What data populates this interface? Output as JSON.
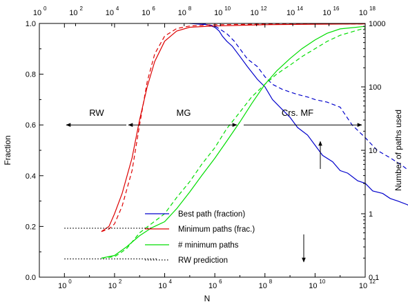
{
  "chart_data": {
    "type": "line",
    "title": "",
    "xlabel": "N",
    "ylabel_left": "Fraction",
    "ylabel_right": "Number of paths used",
    "x_scale": "log10",
    "xlim": [
      0.1,
      1000000000000.0
    ],
    "x_top_scale": "log10",
    "x_top_lim": [
      1,
      1e+18
    ],
    "ylim_left": [
      0,
      1
    ],
    "ylim_right": [
      0.1,
      1000
    ],
    "y_right_scale": "log10",
    "grid": false,
    "legend_position": "bottom-center",
    "x_ticks": [
      {
        "base": "10",
        "exp": "0",
        "value": 1
      },
      {
        "base": "10",
        "exp": "2",
        "value": 100
      },
      {
        "base": "10",
        "exp": "4",
        "value": 10000.0
      },
      {
        "base": "10",
        "exp": "6",
        "value": 1000000.0
      },
      {
        "base": "10",
        "exp": "8",
        "value": 100000000.0
      },
      {
        "base": "10",
        "exp": "10",
        "value": 10000000000.0
      },
      {
        "base": "10",
        "exp": "12",
        "value": 1000000000000.0
      }
    ],
    "x_top_ticks": [
      {
        "label": "10",
        "exp": "0",
        "value": 1
      },
      {
        "label": "10",
        "exp": "2",
        "value": 100
      },
      {
        "label": "10",
        "exp": "4",
        "value": 10000.0
      },
      {
        "label": "10",
        "exp": "6",
        "value": 1000000.0
      },
      {
        "label": "10",
        "exp": "8",
        "value": 100000000.0
      },
      {
        "label": "10",
        "exp": "10",
        "value": 10000000000.0
      },
      {
        "label": "10",
        "exp": "12",
        "value": 1000000000000.0
      },
      {
        "label": "10",
        "exp": "14",
        "value": 100000000000000.0
      },
      {
        "label": "10",
        "exp": "16",
        "value": 1e+16
      },
      {
        "label": "10",
        "exp": "18",
        "value": 1e+18
      }
    ],
    "y_left_ticks": [
      "0.0",
      "0.2",
      "0.4",
      "0.6",
      "0.8",
      "1.0"
    ],
    "y_right_ticks": [
      "0.1",
      "1",
      "10",
      "100",
      "1000"
    ],
    "annotations": [
      {
        "text": "RW",
        "x": 5,
        "y": 0.65
      },
      {
        "text": "MG",
        "x": 100000.0,
        "y": 0.65
      },
      {
        "text": "Crs. MF",
        "x": 3000000000.0,
        "y": 0.65
      }
    ],
    "legend": [
      {
        "label": "Best path (fraction)",
        "color": "#0000cc",
        "style": "solid"
      },
      {
        "label": "Minimum paths (frac.)",
        "color": "#dd0000",
        "style": "solid"
      },
      {
        "label": "# minimum paths",
        "color": "#00dd00",
        "style": "solid"
      },
      {
        "label": "RW prediction",
        "color": "#000000",
        "style": "dotted"
      }
    ],
    "series": [
      {
        "name": "Best path (fraction)",
        "axis": "left",
        "color": "#0000cc",
        "style": "solid",
        "points": [
          [
            100000.0,
            1.0
          ],
          [
            500000.0,
            0.995
          ],
          [
            1000000.0,
            0.985
          ],
          [
            1500000.0,
            0.97
          ],
          [
            2000000.0,
            0.95
          ],
          [
            3000000.0,
            0.93
          ],
          [
            5000000.0,
            0.91
          ],
          [
            10000000.0,
            0.87
          ],
          [
            20000000.0,
            0.83
          ],
          [
            50000000.0,
            0.78
          ],
          [
            100000000.0,
            0.75
          ],
          [
            200000000.0,
            0.7
          ],
          [
            500000000.0,
            0.66
          ],
          [
            1000000000.0,
            0.63
          ],
          [
            2000000000.0,
            0.59
          ],
          [
            5000000000.0,
            0.56
          ],
          [
            10000000000.0,
            0.52
          ],
          [
            20000000000.0,
            0.48
          ],
          [
            50000000000.0,
            0.455
          ],
          [
            100000000000.0,
            0.42
          ],
          [
            200000000000.0,
            0.41
          ],
          [
            500000000000.0,
            0.38
          ],
          [
            1000000000000.0,
            0.37
          ],
          [
            2000000000000.0,
            0.34
          ],
          [
            5000000000000.0,
            0.33
          ],
          [
            10000000000000.0,
            0.31
          ],
          [
            20000000000000.0,
            0.3
          ],
          [
            50000000000000.0,
            0.285
          ],
          [
            80000000000000.0,
            0.26
          ]
        ]
      },
      {
        "name": "Best path (fraction) dashed",
        "axis": "left",
        "color": "#0000cc",
        "style": "dashed",
        "points": [
          [
            300000.0,
            1.0
          ],
          [
            1000000.0,
            0.99
          ],
          [
            3000000.0,
            0.96
          ],
          [
            6000000.0,
            0.93
          ],
          [
            10000000.0,
            0.9
          ],
          [
            20000000.0,
            0.86
          ],
          [
            50000000.0,
            0.83
          ],
          [
            100000000.0,
            0.79
          ],
          [
            200000000.0,
            0.76
          ],
          [
            500000000.0,
            0.74
          ],
          [
            1000000000.0,
            0.73
          ],
          [
            2000000000.0,
            0.72
          ],
          [
            5000000000.0,
            0.71
          ],
          [
            10000000000.0,
            0.7
          ],
          [
            30000000000.0,
            0.69
          ],
          [
            100000000000.0,
            0.67
          ],
          [
            300000000000.0,
            0.6
          ],
          [
            1000000000000.0,
            0.55
          ],
          [
            3000000000000.0,
            0.5
          ],
          [
            10000000000000.0,
            0.47
          ],
          [
            30000000000000.0,
            0.44
          ],
          [
            100000000000000.0,
            0.4
          ],
          [
            300000000000000.0,
            0.38
          ],
          [
            1000000000000000.0,
            0.38
          ],
          [
            3000000000000000.0,
            0.36
          ],
          [
            1e+16,
            0.33
          ],
          [
            3e+16,
            0.31
          ],
          [
            6e+16,
            0.3
          ]
        ]
      },
      {
        "name": "Minimum paths (frac.)",
        "axis": "left",
        "color": "#dd0000",
        "style": "solid",
        "points": [
          [
            30,
            0.18
          ],
          [
            60,
            0.2
          ],
          [
            100,
            0.25
          ],
          [
            200,
            0.33
          ],
          [
            500,
            0.47
          ],
          [
            1000,
            0.62
          ],
          [
            2000,
            0.75
          ],
          [
            4000,
            0.85
          ],
          [
            10000.0,
            0.93
          ],
          [
            30000.0,
            0.97
          ],
          [
            100000.0,
            0.985
          ],
          [
            1000000.0,
            0.99
          ],
          [
            100000000.0,
            0.995
          ],
          [
            10000000000.0,
            0.997
          ],
          [
            1000000000000.0,
            0.998
          ]
        ]
      },
      {
        "name": "Minimum paths (frac.) dashed",
        "axis": "left",
        "color": "#dd0000",
        "style": "dashed",
        "points": [
          [
            30,
            0.18
          ],
          [
            60,
            0.19
          ],
          [
            100,
            0.21
          ],
          [
            200,
            0.28
          ],
          [
            500,
            0.42
          ],
          [
            1000,
            0.6
          ],
          [
            2000,
            0.77
          ],
          [
            4000,
            0.88
          ],
          [
            10000.0,
            0.95
          ],
          [
            30000.0,
            0.98
          ],
          [
            100000.0,
            0.99
          ],
          [
            1000000.0,
            0.995
          ],
          [
            100000000.0,
            0.997
          ],
          [
            1000000000000.0,
            0.998
          ]
        ]
      },
      {
        "name": "# minimum paths",
        "axis": "right",
        "color": "#00dd00",
        "style": "solid",
        "points": [
          [
            30,
            0.2
          ],
          [
            100,
            0.22
          ],
          [
            300,
            0.3
          ],
          [
            1000,
            0.45
          ],
          [
            3000,
            0.6
          ],
          [
            10000.0,
            0.75
          ],
          [
            30000.0,
            1.2
          ],
          [
            100000.0,
            2.2
          ],
          [
            300000.0,
            4
          ],
          [
            1000000.0,
            7.5
          ],
          [
            3000000.0,
            14
          ],
          [
            10000000.0,
            28
          ],
          [
            30000000.0,
            55
          ],
          [
            100000000.0,
            110
          ],
          [
            300000000.0,
            180
          ],
          [
            1000000000.0,
            280
          ],
          [
            3000000000.0,
            400
          ],
          [
            10000000000.0,
            550
          ],
          [
            30000000000.0,
            700
          ],
          [
            100000000000.0,
            820
          ],
          [
            1000000000000.0,
            900
          ]
        ]
      },
      {
        "name": "# minimum paths dashed",
        "axis": "right",
        "color": "#00dd00",
        "style": "dashed",
        "points": [
          [
            30,
            0.2
          ],
          [
            100,
            0.21
          ],
          [
            300,
            0.28
          ],
          [
            1000,
            0.5
          ],
          [
            3000,
            0.7
          ],
          [
            10000.0,
            1.0
          ],
          [
            30000.0,
            1.8
          ],
          [
            100000.0,
            3.2
          ],
          [
            300000.0,
            6
          ],
          [
            1000000.0,
            11
          ],
          [
            3000000.0,
            22
          ],
          [
            10000000.0,
            40
          ],
          [
            30000000.0,
            70
          ],
          [
            100000000.0,
            110
          ],
          [
            300000000.0,
            160
          ],
          [
            1000000000.0,
            220
          ],
          [
            3000000000.0,
            300
          ],
          [
            10000000000.0,
            400
          ],
          [
            30000000000.0,
            520
          ],
          [
            100000000000.0,
            650
          ],
          [
            1000000000000.0,
            850
          ]
        ]
      },
      {
        "name": "RW prediction (frac.)",
        "axis": "left",
        "color": "#000000",
        "style": "dotted",
        "points": [
          [
            1,
            0.193
          ],
          [
            3000,
            0.193
          ]
        ]
      },
      {
        "name": "RW prediction (# paths)",
        "axis": "left",
        "color": "#000000",
        "style": "dotted",
        "points": [
          [
            1,
            0.072
          ],
          [
            5000,
            0.072
          ]
        ]
      }
    ]
  }
}
